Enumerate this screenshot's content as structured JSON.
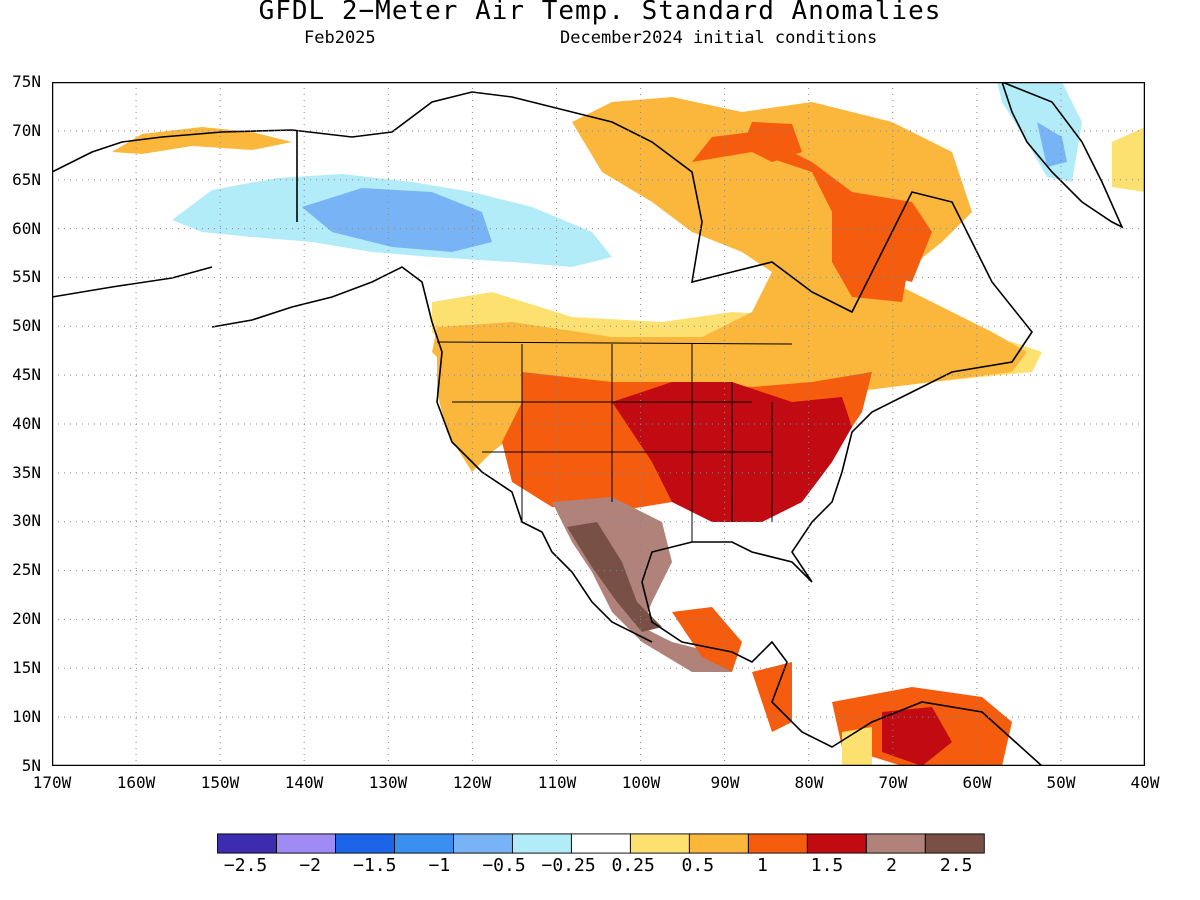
{
  "title": "GFDL 2−Meter Air Temp. Standard Anomalies",
  "valid_month": "Feb2025",
  "initial_conditions": "December2024 initial conditions",
  "latitude_labels": [
    "75N",
    "70N",
    "65N",
    "60N",
    "55N",
    "50N",
    "45N",
    "40N",
    "35N",
    "30N",
    "25N",
    "20N",
    "15N",
    "10N",
    "5N"
  ],
  "longitude_labels": [
    "170W",
    "160W",
    "150W",
    "140W",
    "130W",
    "120W",
    "110W",
    "100W",
    "90W",
    "80W",
    "70W",
    "60W",
    "50W",
    "40W"
  ],
  "colorbar": {
    "colors": [
      "#3d2bb0",
      "#a08bf5",
      "#1c64e8",
      "#3a8ff0",
      "#78b4f5",
      "#b2ecf8",
      "#ffffff",
      "#fde170",
      "#fbb63c",
      "#f65c0e",
      "#c20a12",
      "#b08279",
      "#785046"
    ],
    "tick_labels": [
      "−2.5",
      "−2",
      "−1.5",
      "−1",
      "−0.5",
      "−0.25",
      "0.25",
      "0.5",
      "1",
      "1.5",
      "2",
      "2.5"
    ]
  }
}
